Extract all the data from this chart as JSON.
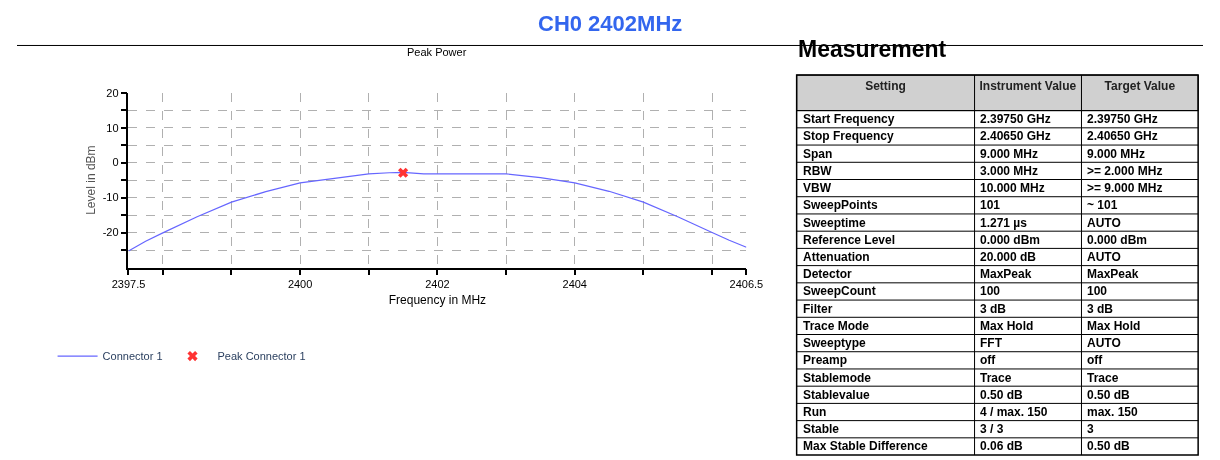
{
  "chart_data": [
    {
      "type": "line",
      "title": "Peak Power",
      "xlabel": "Frequency in MHz",
      "ylabel": "Level in dBm",
      "annotations": [
        "CH0 2402MHz"
      ],
      "xlim": [
        2397.5,
        2406.5
      ],
      "ylim": [
        -30,
        20
      ],
      "xticks": [
        2397.5,
        {
          "value": 2398,
          "label": null
        },
        {
          "value": 2399,
          "label": null
        },
        2400,
        {
          "value": 2401,
          "label": null
        },
        2402,
        {
          "value": 2403,
          "label": null
        },
        2404,
        {
          "value": 2405,
          "label": null
        },
        {
          "value": 2406,
          "label": null
        },
        2406.5
      ],
      "yticks": [
        {
          "value": -25,
          "label": null
        },
        -20,
        {
          "value": -15,
          "label": null
        },
        -10,
        {
          "value": -5,
          "label": null
        },
        0,
        {
          "value": 5,
          "label": null
        },
        10,
        {
          "value": 15,
          "label": null
        },
        20
      ],
      "grid": true,
      "legend": "bottom left",
      "series": [
        {
          "name": "Connector 1",
          "type": "line",
          "color": "#6666ff",
          "marker": "none",
          "x": [
            2397.5,
            2397.75,
            2398,
            2398.5,
            2399,
            2399.5,
            2400,
            2400.5,
            2401,
            2401.3,
            2401.5,
            2401.8,
            2402,
            2402.5,
            2403,
            2403.5,
            2404,
            2404.5,
            2405,
            2405.5,
            2406,
            2406.25,
            2406.5
          ],
          "values": [
            -25.3,
            -22.5,
            -20.1,
            -15.5,
            -11.3,
            -8.3,
            -5.8,
            -4.5,
            -3.2,
            -2.9,
            -2.8,
            -3.2,
            -3.2,
            -3.2,
            -3.2,
            -4.3,
            -5.8,
            -8.2,
            -11.3,
            -15.5,
            -20.0,
            -22.2,
            -24.2
          ]
        },
        {
          "name": "Peak Connector 1",
          "type": "scatter",
          "color": "#ff3333",
          "marker": "cross",
          "x": [
            2401.5
          ],
          "values": [
            -2.9
          ]
        }
      ]
    },
    {
      "type": "other",
      "title": "Measurement",
      "categories": [
        "Setting",
        "Instrument Value",
        "Target Value"
      ],
      "y_categories": [
        "Start Frequency",
        "Stop Frequency",
        "Span",
        "RBW",
        "VBW",
        "SweepPoints",
        "Sweeptime",
        "Reference Level",
        "Attenuation",
        "Detector",
        "SweepCount",
        "Filter",
        "Trace Mode",
        "Sweeptype",
        "Preamp",
        "Stablemode",
        "Stablevalue",
        "Run",
        "Stable",
        "Max Stable Difference"
      ],
      "cell_labels": [
        [
          "2.39750 GHz",
          "2.39750 GHz"
        ],
        [
          "2.40650 GHz",
          "2.40650 GHz"
        ],
        [
          "9.000 MHz",
          "9.000 MHz"
        ],
        [
          "3.000 MHz",
          ">= 2.000 MHz"
        ],
        [
          "10.000 MHz",
          ">= 9.000 MHz"
        ],
        [
          "101",
          "~ 101"
        ],
        [
          "1.271 µs",
          "AUTO"
        ],
        [
          "0.000 dBm",
          "0.000 dBm"
        ],
        [
          "20.000 dB",
          "AUTO"
        ],
        [
          "MaxPeak",
          "MaxPeak"
        ],
        [
          "100",
          "100"
        ],
        [
          "3 dB",
          "3 dB"
        ],
        [
          "Max Hold",
          "Max Hold"
        ],
        [
          "FFT",
          "AUTO"
        ],
        [
          "off",
          "off"
        ],
        [
          "Trace",
          "Trace"
        ],
        [
          "0.50 dB",
          "0.50 dB"
        ],
        [
          "4 / max. 150",
          "max. 150"
        ],
        [
          "3 / 3",
          "3"
        ],
        [
          "0.06 dB",
          "0.50 dB"
        ]
      ]
    }
  ]
}
